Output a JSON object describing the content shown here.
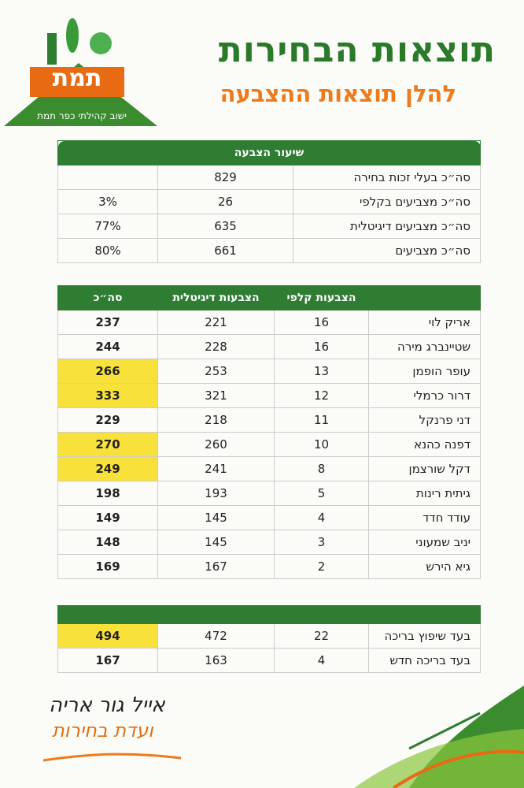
{
  "logo": {
    "name": "תמת",
    "caption": "ישוב קהילתי כפר תמת"
  },
  "header": {
    "title": "תוצאות הבחירות",
    "subtitle": "להלן תוצאות ההצבעה"
  },
  "turnout": {
    "title": "שיעור הצבעה",
    "rows": [
      {
        "label": "סה״כ בעלי זכות בחירה",
        "count": 829
      },
      {
        "label": "סה״כ מצביעים בקלפי",
        "count": 26,
        "percent": "3%"
      },
      {
        "label": "סה״כ מצביעים דיגיטלית",
        "count": 635,
        "percent": "77%"
      },
      {
        "label": "סה״כ מצביעים",
        "count": 661,
        "percent": "80%"
      }
    ]
  },
  "candidates": {
    "columns": [
      "הצבעות קלפי",
      "הצבעות דיגיטלית",
      "סה״כ"
    ],
    "rows": [
      {
        "name": "אריק לוי",
        "ballot": 16,
        "digital": 221,
        "total": 237
      },
      {
        "name": "שטיינברג מירה",
        "ballot": 16,
        "digital": 228,
        "total": 244
      },
      {
        "name": "עופר הופמן",
        "ballot": 13,
        "digital": 253,
        "total": 266,
        "highlight": true
      },
      {
        "name": "דרור כרמלי",
        "ballot": 12,
        "digital": 321,
        "total": 333,
        "highlight": true
      },
      {
        "name": "דני פרנקל",
        "ballot": 11,
        "digital": 218,
        "total": 229
      },
      {
        "name": "דפנה כהנא",
        "ballot": 10,
        "digital": 260,
        "total": 270,
        "highlight": true
      },
      {
        "name": "דקל שורצמן",
        "ballot": 8,
        "digital": 241,
        "total": 249,
        "highlight": true
      },
      {
        "name": "גיתית רינות",
        "ballot": 5,
        "digital": 193,
        "total": 198
      },
      {
        "name": "עודד חדד",
        "ballot": 4,
        "digital": 145,
        "total": 149
      },
      {
        "name": "יניב שמעוני",
        "ballot": 3,
        "digital": 145,
        "total": 148
      },
      {
        "name": "גיא הירש",
        "ballot": 2,
        "digital": 167,
        "total": 169
      }
    ]
  },
  "pool": {
    "rows": [
      {
        "name": "בעד שיפוץ בריכה",
        "ballot": 22,
        "digital": 472,
        "total": 494,
        "highlight": true
      },
      {
        "name": "בעד בריכה חדש",
        "ballot": 4,
        "digital": 163,
        "total": 167
      }
    ]
  },
  "footer": {
    "signature": "אייל גור אריה",
    "committee": "ועדת בחירות"
  }
}
